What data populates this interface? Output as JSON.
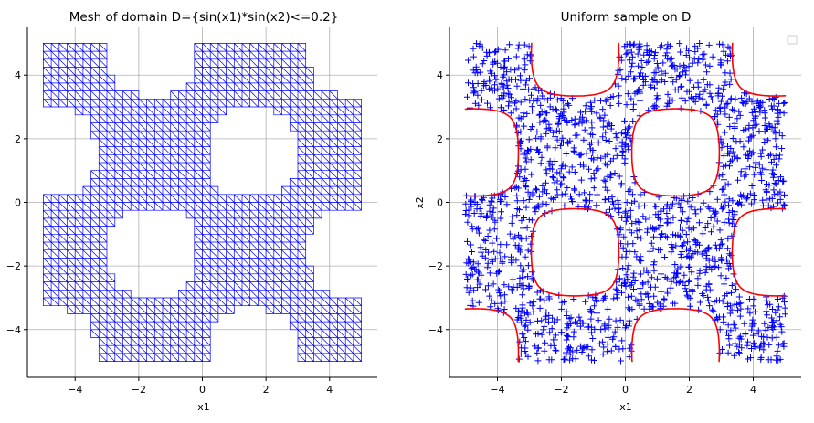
{
  "chart_data": [
    {
      "type": "mesh",
      "title": "Mesh of domain D={sin(x1)*sin(x2)<=0.2}",
      "xlabel": "x1",
      "ylabel": "",
      "xlim": [
        -5.5,
        5.5
      ],
      "ylim": [
        -5.5,
        5.5
      ],
      "xticks": [
        -4,
        -2,
        0,
        2,
        4
      ],
      "yticks": [
        -4,
        -2,
        0,
        2,
        4
      ],
      "xtick_labels": [
        "−4",
        "−2",
        "0",
        "2",
        "4"
      ],
      "ytick_labels": [
        "−4",
        "−2",
        "0",
        "2",
        "4"
      ],
      "grid": true,
      "domain": {
        "inequality": "sin(x1)*sin(x2)<=0.2",
        "x1_range": [
          -5,
          5
        ],
        "x2_range": [
          -5,
          5
        ]
      },
      "mesh_step": 0.25,
      "mesh_color": "#0000ff"
    },
    {
      "type": "scatter",
      "title": "Uniform sample on D",
      "xlabel": "x1",
      "ylabel": "x2",
      "xlim": [
        -5.5,
        5.5
      ],
      "ylim": [
        -5.5,
        5.5
      ],
      "xticks": [
        -4,
        -2,
        0,
        2,
        4
      ],
      "yticks": [
        -4,
        -2,
        0,
        2,
        4
      ],
      "xtick_labels": [
        "−4",
        "−2",
        "0",
        "2",
        "4"
      ],
      "ytick_labels": [
        "−4",
        "−2",
        "0",
        "2",
        "4"
      ],
      "grid": true,
      "legend": "top-right",
      "marker": "+",
      "marker_color": "#0000ff",
      "sample_count": 1800,
      "boundary_curve": "sin(x1)*sin(x2)=0.2",
      "boundary_color": "#ff0000"
    }
  ]
}
